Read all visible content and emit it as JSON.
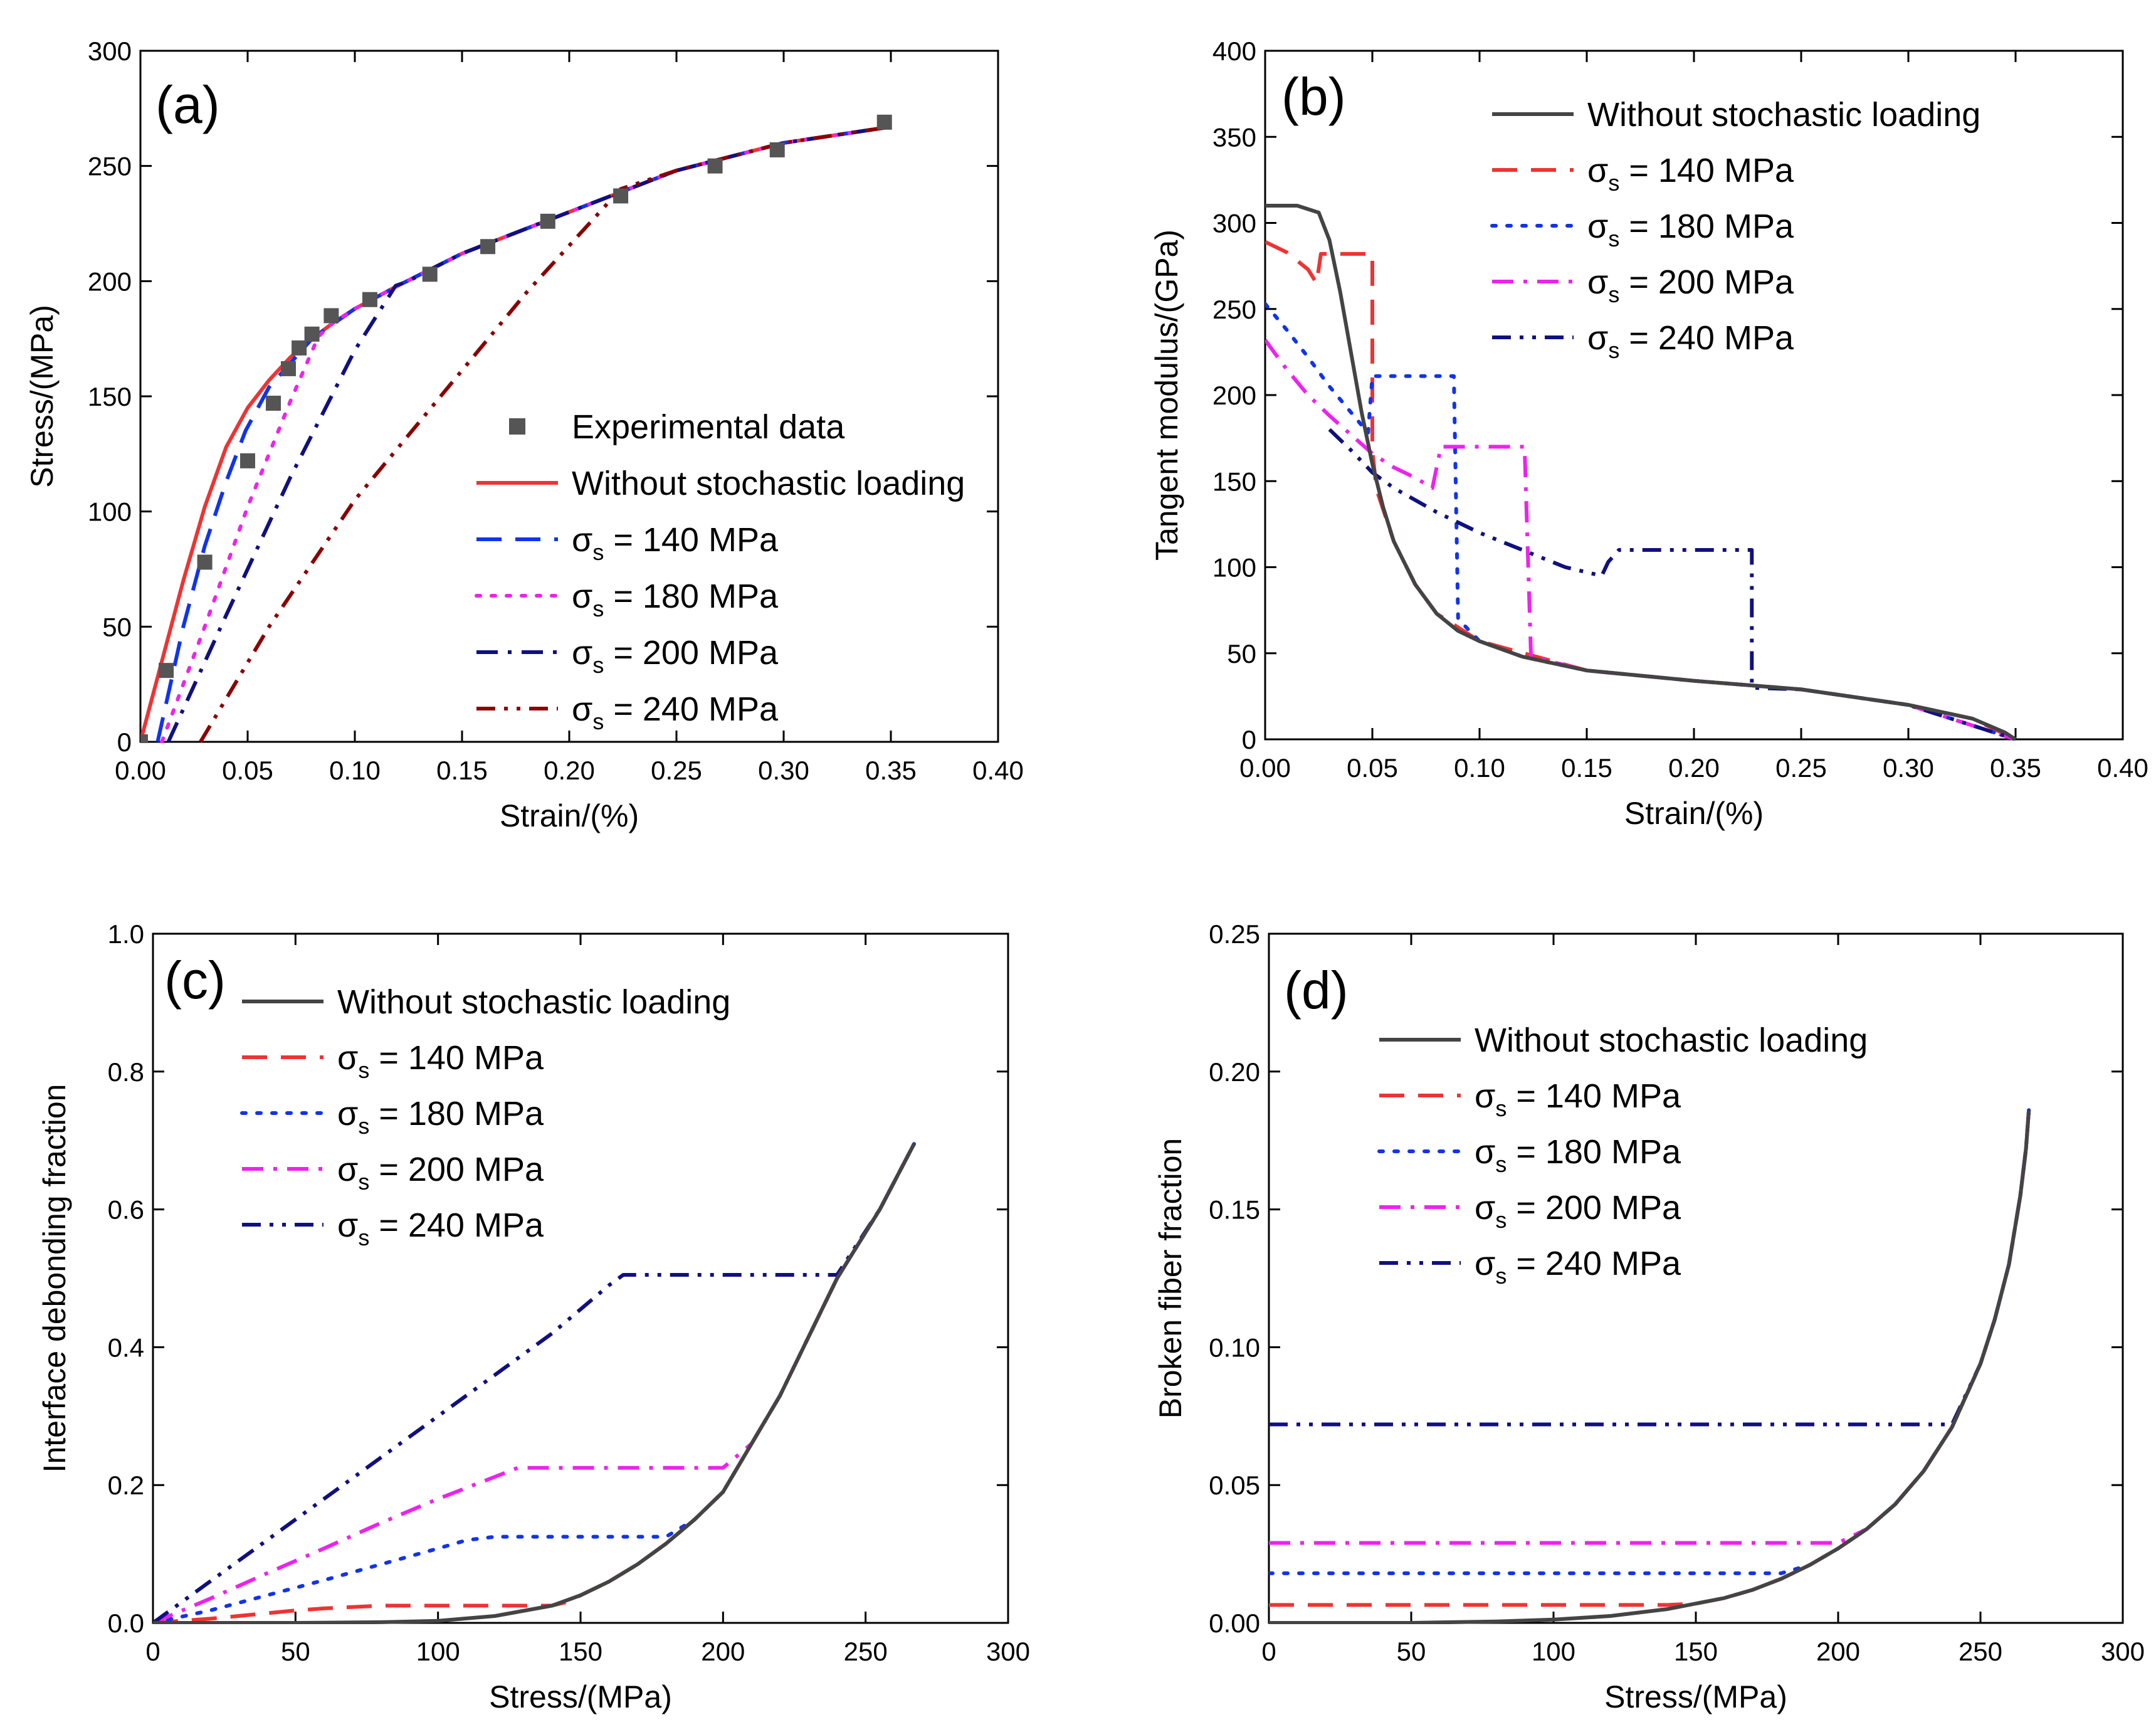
{
  "chart_data": [
    {
      "panel": "a",
      "type": "line",
      "panel_label": "(a)",
      "xlabel": "Strain/(%)",
      "ylabel": "Stress/(MPa)",
      "xlim": [
        0,
        0.4
      ],
      "ylim": [
        0,
        300
      ],
      "xticks": [
        "0.00",
        "0.05",
        "0.10",
        "0.15",
        "0.20",
        "0.25",
        "0.30",
        "0.35",
        "0.40"
      ],
      "yticks": [
        "0",
        "50",
        "100",
        "150",
        "200",
        "250",
        "300"
      ],
      "legend_position": "center-right",
      "series": [
        {
          "name": "Experimental data",
          "style": "markers",
          "color": "#555555",
          "x": [
            0.0,
            0.012,
            0.03,
            0.05,
            0.062,
            0.069,
            0.074,
            0.08,
            0.089,
            0.107,
            0.135,
            0.162,
            0.19,
            0.224,
            0.268,
            0.297,
            0.347
          ],
          "y": [
            0,
            31,
            78,
            122,
            147,
            162,
            171,
            177,
            185,
            192,
            203,
            215,
            226,
            237,
            250,
            257,
            269
          ]
        },
        {
          "name": "Without stochastic loading",
          "style": "solid",
          "color": "#ee3333",
          "x": [
            0,
            0.01,
            0.02,
            0.03,
            0.04,
            0.05,
            0.06,
            0.07,
            0.08,
            0.09,
            0.1,
            0.12,
            0.15,
            0.2,
            0.25,
            0.3,
            0.35
          ],
          "y": [
            0,
            35,
            70,
            102,
            128,
            145,
            157,
            167,
            175,
            182,
            188,
            198,
            212,
            230,
            248,
            260,
            267
          ]
        },
        {
          "name": "σs = 140 MPa",
          "style": "dash",
          "color": "#1133ee",
          "x": [
            0.008,
            0.02,
            0.03,
            0.04,
            0.049,
            0.06,
            0.08,
            0.1,
            0.12,
            0.15,
            0.2,
            0.25,
            0.3,
            0.35
          ],
          "y": [
            0,
            50,
            85,
            113,
            135,
            154,
            175,
            188,
            198,
            212,
            230,
            248,
            260,
            267
          ]
        },
        {
          "name": "σs = 180 MPa",
          "style": "dot",
          "color": "#ee22ee",
          "x": [
            0.01,
            0.03,
            0.05,
            0.07,
            0.083,
            0.09,
            0.1,
            0.12,
            0.15,
            0.2,
            0.25,
            0.3,
            0.35
          ],
          "y": [
            0,
            50,
            102,
            148,
            176,
            182,
            188,
            198,
            212,
            230,
            248,
            260,
            267
          ]
        },
        {
          "name": "σs = 200 MPa",
          "style": "dashdot",
          "color": "#101080",
          "x": [
            0.013,
            0.04,
            0.07,
            0.1,
            0.119,
            0.125,
            0.135,
            0.15,
            0.2,
            0.25,
            0.3,
            0.35
          ],
          "y": [
            0,
            55,
            115,
            170,
            198,
            200,
            205,
            212,
            230,
            248,
            260,
            267
          ]
        },
        {
          "name": "σs = 240 MPa",
          "style": "dashdotdot",
          "color": "#8b0000",
          "x": [
            0.028,
            0.06,
            0.1,
            0.14,
            0.18,
            0.224,
            0.25,
            0.3,
            0.35
          ],
          "y": [
            0,
            50,
            105,
            150,
            195,
            240,
            248,
            260,
            267
          ]
        }
      ]
    },
    {
      "panel": "b",
      "type": "line",
      "panel_label": "(b)",
      "xlabel": "Strain/(%)",
      "ylabel": "Tangent modulus/(GPa)",
      "xlim": [
        0,
        0.4
      ],
      "ylim": [
        0,
        400
      ],
      "xticks": [
        "0.00",
        "0.05",
        "0.10",
        "0.15",
        "0.20",
        "0.25",
        "0.30",
        "0.35",
        "0.40"
      ],
      "yticks": [
        "0",
        "50",
        "100",
        "150",
        "200",
        "250",
        "300",
        "350",
        "400"
      ],
      "legend_position": "top-right",
      "series": [
        {
          "name": "Without stochastic loading",
          "style": "solid",
          "color": "#444444",
          "x": [
            0,
            0.015,
            0.025,
            0.03,
            0.035,
            0.04,
            0.045,
            0.05,
            0.055,
            0.06,
            0.07,
            0.08,
            0.09,
            0.1,
            0.12,
            0.15,
            0.2,
            0.25,
            0.3,
            0.33,
            0.345,
            0.35
          ],
          "y": [
            310,
            310,
            306,
            290,
            260,
            225,
            190,
            160,
            135,
            115,
            90,
            73,
            63,
            57,
            48,
            40,
            34,
            29,
            20,
            12,
            4,
            0
          ]
        },
        {
          "name": "σs = 140 MPa",
          "style": "dash",
          "color": "#ee3333",
          "x": [
            0,
            0.01,
            0.02,
            0.024,
            0.026,
            0.05,
            0.05,
            0.052,
            0.06,
            0.07,
            0.08,
            0.1,
            0.15,
            0.2,
            0.25,
            0.3,
            0.33,
            0.35
          ],
          "y": [
            289,
            283,
            273,
            265,
            282,
            282,
            168,
            145,
            115,
            90,
            73,
            57,
            40,
            34,
            29,
            20,
            12,
            0
          ]
        },
        {
          "name": "σs = 180 MPa",
          "style": "dot",
          "color": "#1133ee",
          "x": [
            0,
            0.01,
            0.02,
            0.03,
            0.04,
            0.048,
            0.05,
            0.088,
            0.09,
            0.1,
            0.12,
            0.15,
            0.2,
            0.25,
            0.3,
            0.35
          ],
          "y": [
            253,
            238,
            222,
            205,
            190,
            178,
            211,
            211,
            70,
            57,
            48,
            40,
            34,
            29,
            20,
            0
          ]
        },
        {
          "name": "σs = 200 MPa",
          "style": "dashdot",
          "color": "#ee22ee",
          "x": [
            0,
            0.01,
            0.02,
            0.03,
            0.04,
            0.05,
            0.06,
            0.07,
            0.078,
            0.082,
            0.121,
            0.124,
            0.15,
            0.2,
            0.25,
            0.3,
            0.35
          ],
          "y": [
            232,
            215,
            200,
            188,
            177,
            166,
            158,
            152,
            146,
            170,
            170,
            48,
            40,
            34,
            29,
            20,
            0
          ]
        },
        {
          "name": "σs = 240 MPa",
          "style": "dashdotdot",
          "color": "#101080",
          "x": [
            0.03,
            0.04,
            0.05,
            0.06,
            0.08,
            0.1,
            0.12,
            0.14,
            0.157,
            0.16,
            0.165,
            0.227,
            0.227,
            0.25,
            0.3,
            0.35
          ],
          "y": [
            180,
            168,
            155,
            146,
            132,
            120,
            110,
            100,
            95,
            103,
            110,
            110,
            30,
            29,
            20,
            0
          ]
        }
      ]
    },
    {
      "panel": "c",
      "type": "line",
      "panel_label": "(c)",
      "xlabel": "Stress/(MPa)",
      "ylabel": "Interface debonding fraction",
      "xlim": [
        0,
        300
      ],
      "ylim": [
        0,
        1.0
      ],
      "xticks": [
        "0",
        "50",
        "100",
        "150",
        "200",
        "250",
        "300"
      ],
      "yticks": [
        "0.0",
        "0.2",
        "0.4",
        "0.6",
        "0.8",
        "1.0"
      ],
      "legend_position": "top-center",
      "series": [
        {
          "name": "Without stochastic loading",
          "style": "solid",
          "color": "#444444",
          "x": [
            0,
            50,
            80,
            100,
            120,
            140,
            150,
            160,
            170,
            180,
            190,
            200,
            210,
            220,
            240,
            255,
            267
          ],
          "y": [
            0,
            0,
            0.001,
            0.003,
            0.01,
            0.025,
            0.04,
            0.06,
            0.085,
            0.115,
            0.15,
            0.19,
            0.26,
            0.33,
            0.5,
            0.6,
            0.695
          ]
        },
        {
          "name": "σs = 140 MPa",
          "style": "dash",
          "color": "#ee3333",
          "x": [
            0,
            10,
            20,
            30,
            40,
            50,
            60,
            80,
            100,
            120,
            140,
            145,
            150,
            160,
            170,
            180,
            190,
            200,
            210,
            220,
            240,
            255,
            267
          ],
          "y": [
            0,
            0.003,
            0.006,
            0.01,
            0.014,
            0.018,
            0.021,
            0.025,
            0.025,
            0.025,
            0.025,
            0.03,
            0.04,
            0.06,
            0.085,
            0.115,
            0.15,
            0.19,
            0.26,
            0.33,
            0.5,
            0.6,
            0.695
          ]
        },
        {
          "name": "σs = 180 MPa",
          "style": "dot",
          "color": "#1133ee",
          "x": [
            0,
            20,
            40,
            60,
            80,
            100,
            110,
            120,
            140,
            160,
            175,
            180,
            190,
            200,
            210,
            220,
            240,
            255,
            267
          ],
          "y": [
            0,
            0.018,
            0.04,
            0.062,
            0.085,
            0.108,
            0.12,
            0.125,
            0.125,
            0.125,
            0.125,
            0.125,
            0.15,
            0.19,
            0.26,
            0.33,
            0.5,
            0.6,
            0.695
          ]
        },
        {
          "name": "σs = 200 MPa",
          "style": "dashdot",
          "color": "#ee22ee",
          "x": [
            0,
            20,
            40,
            60,
            80,
            100,
            120,
            128,
            140,
            160,
            180,
            200,
            210,
            220,
            240,
            255,
            267
          ],
          "y": [
            0,
            0.035,
            0.072,
            0.108,
            0.145,
            0.18,
            0.212,
            0.225,
            0.225,
            0.225,
            0.225,
            0.225,
            0.26,
            0.33,
            0.5,
            0.6,
            0.695
          ]
        },
        {
          "name": "σs = 240 MPa",
          "style": "dashdotdot",
          "color": "#101080",
          "x": [
            0,
            20,
            40,
            60,
            80,
            100,
            120,
            140,
            160,
            165,
            180,
            200,
            220,
            240,
            255,
            267
          ],
          "y": [
            0,
            0.06,
            0.12,
            0.18,
            0.24,
            0.3,
            0.36,
            0.42,
            0.49,
            0.505,
            0.505,
            0.505,
            0.505,
            0.505,
            0.6,
            0.695
          ]
        }
      ]
    },
    {
      "panel": "d",
      "type": "line",
      "panel_label": "(d)",
      "xlabel": "Stress/(MPa)",
      "ylabel": "Broken fiber fraction",
      "xlim": [
        0,
        300
      ],
      "ylim": [
        0,
        0.25
      ],
      "xticks": [
        "0",
        "50",
        "100",
        "150",
        "200",
        "250",
        "300"
      ],
      "yticks": [
        "0.00",
        "0.05",
        "0.10",
        "0.15",
        "0.20",
        "0.25"
      ],
      "legend_position": "top-center",
      "series": [
        {
          "name": "Without stochastic loading",
          "style": "solid",
          "color": "#444444",
          "x": [
            0,
            50,
            80,
            100,
            120,
            140,
            150,
            160,
            170,
            180,
            190,
            200,
            210,
            220,
            230,
            240,
            250,
            255,
            260,
            264,
            266,
            267
          ],
          "y": [
            0,
            0,
            0.0005,
            0.0012,
            0.0025,
            0.005,
            0.007,
            0.009,
            0.012,
            0.016,
            0.021,
            0.027,
            0.034,
            0.043,
            0.055,
            0.071,
            0.094,
            0.11,
            0.13,
            0.155,
            0.172,
            0.186
          ]
        },
        {
          "name": "σs = 140 MPa",
          "style": "dash",
          "color": "#ee3333",
          "x": [
            0,
            140,
            150,
            160,
            170,
            180,
            190,
            200,
            210,
            220,
            230,
            240,
            250,
            255,
            260,
            264,
            266,
            267
          ],
          "y": [
            0.0065,
            0.0065,
            0.007,
            0.009,
            0.012,
            0.016,
            0.021,
            0.027,
            0.034,
            0.043,
            0.055,
            0.071,
            0.094,
            0.11,
            0.13,
            0.155,
            0.172,
            0.186
          ]
        },
        {
          "name": "σs = 180 MPa",
          "style": "dot",
          "color": "#1133ee",
          "x": [
            0,
            175,
            180,
            190,
            200,
            210,
            220,
            230,
            240,
            250,
            255,
            260,
            264,
            266,
            267
          ],
          "y": [
            0.018,
            0.018,
            0.018,
            0.021,
            0.027,
            0.034,
            0.043,
            0.055,
            0.071,
            0.094,
            0.11,
            0.13,
            0.155,
            0.172,
            0.186
          ]
        },
        {
          "name": "σs = 200 MPa",
          "style": "dashdot",
          "color": "#ee22ee",
          "x": [
            0,
            200,
            210,
            220,
            230,
            240,
            250,
            255,
            260,
            264,
            266,
            267
          ],
          "y": [
            0.029,
            0.029,
            0.034,
            0.043,
            0.055,
            0.071,
            0.094,
            0.11,
            0.13,
            0.155,
            0.172,
            0.186
          ]
        },
        {
          "name": "σs = 240 MPa",
          "style": "dashdotdot",
          "color": "#101080",
          "x": [
            0,
            240,
            250,
            255,
            260,
            264,
            266,
            267
          ],
          "y": [
            0.072,
            0.072,
            0.094,
            0.11,
            0.13,
            0.155,
            0.172,
            0.186
          ]
        }
      ]
    }
  ]
}
